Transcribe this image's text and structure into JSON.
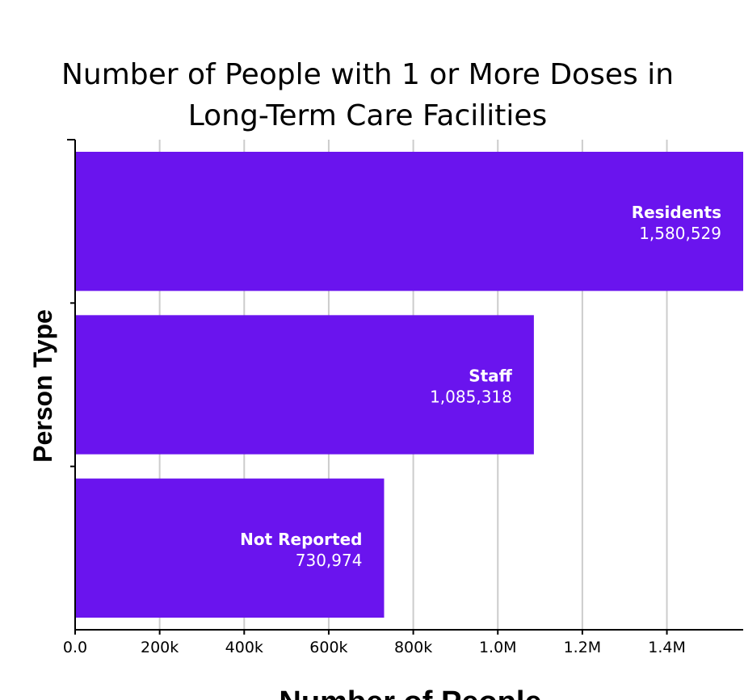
{
  "chart_data": {
    "type": "bar",
    "orientation": "horizontal",
    "title": [
      "Number of People with 1 or More Doses in",
      "Long-Term Care Facilities"
    ],
    "xlabel": "Number of People",
    "ylabel": "Person Type",
    "categories": [
      "Residents",
      "Staff",
      "Not Reported"
    ],
    "values": [
      1580529,
      1085318,
      730974
    ],
    "value_labels": [
      "1,580,529",
      "1,085,318",
      "730,974"
    ],
    "xlim": [
      0,
      1580529
    ],
    "x_ticks": [
      0,
      200000,
      400000,
      600000,
      800000,
      1000000,
      1200000,
      1400000
    ],
    "x_tick_labels": [
      "0.0",
      "200k",
      "400k",
      "600k",
      "800k",
      "1.0M",
      "1.2M",
      "1.4M"
    ],
    "grid": true,
    "bar_color": "#6a14ee",
    "label_color": "#ffffff",
    "grid_color": "#cccccc"
  }
}
